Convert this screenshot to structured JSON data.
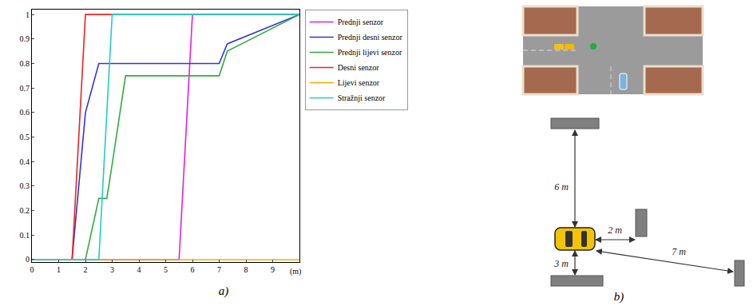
{
  "chart_data": {
    "type": "line",
    "x_label": "(m)",
    "x": [
      0,
      1.5,
      2,
      2.5,
      2.8,
      3,
      3.5,
      5.5,
      6,
      7,
      7.3,
      10
    ],
    "series": [
      {
        "name": "Prednji senzor",
        "color": "#e020e0",
        "values": [
          0,
          0,
          0,
          0,
          0,
          0,
          0,
          0,
          1,
          1,
          1,
          1
        ]
      },
      {
        "name": "Prednji desni senzor",
        "color": "#3333dd",
        "values": [
          0,
          0,
          0.6,
          0.8,
          0.8,
          0.8,
          0.8,
          0.8,
          0.8,
          0.8,
          0.88,
          1
        ]
      },
      {
        "name": "Prednji lijevi senzor",
        "color": "#33aa44",
        "values": [
          0,
          0,
          0,
          0.25,
          0.25,
          0.39,
          0.75,
          0.75,
          0.75,
          0.75,
          0.85,
          1
        ]
      },
      {
        "name": "Desni senzor",
        "color": "#ee2222",
        "values": [
          0,
          0,
          1,
          1,
          1,
          1,
          1,
          1,
          1,
          1,
          1,
          1
        ]
      },
      {
        "name": "Lijevi senzor",
        "color": "#ffaa00",
        "values": [
          0,
          0,
          0,
          0,
          0,
          0,
          0,
          0,
          0,
          0,
          0,
          0
        ]
      },
      {
        "name": "Stražnji senzor",
        "color": "#22cccc",
        "values": [
          0,
          0,
          0,
          0,
          0.6,
          1,
          1,
          1,
          1,
          1,
          1,
          1
        ]
      }
    ],
    "xlim": [
      0,
      10
    ],
    "xticks": [
      0,
      1,
      2,
      3,
      4,
      5,
      6,
      7,
      8,
      9
    ],
    "ylim": [
      -0.01,
      1.02
    ],
    "yticks": [
      0,
      0.1,
      0.2,
      0.3,
      0.4,
      0.5,
      0.6,
      0.7,
      0.8,
      0.9,
      1
    ],
    "grid": false,
    "legend": "right"
  },
  "panel_labels": [
    "a)",
    "b)"
  ],
  "diagram": {
    "distances": {
      "front": "6 m",
      "right": "2 m",
      "rear": "3 m",
      "diagonal": "7 m"
    }
  }
}
